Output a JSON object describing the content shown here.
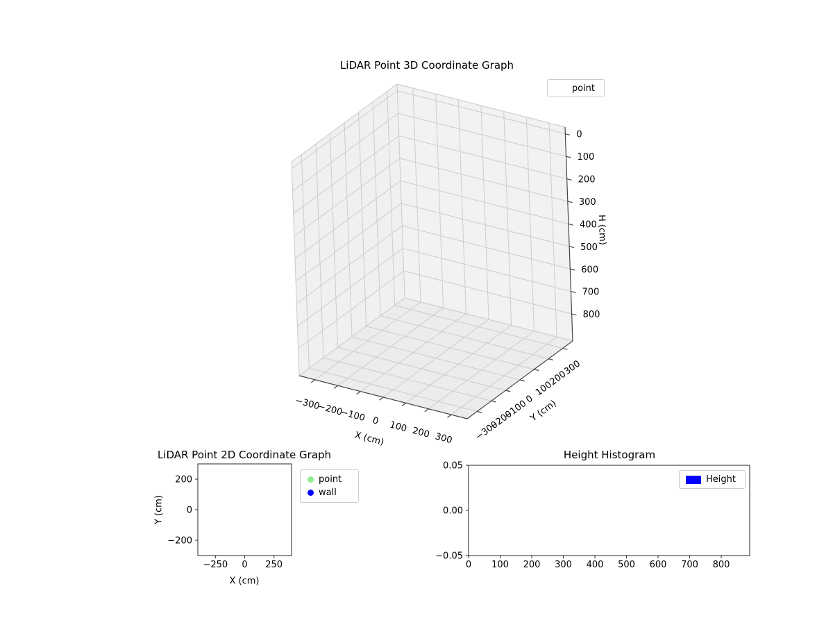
{
  "figure": {
    "background": "#ffffff"
  },
  "chart_data": [
    {
      "type": "scatter3d",
      "title": "LiDAR Point 3D Coordinate Graph",
      "xlabel": "X (cm)",
      "ylabel": "Y (cm)",
      "zlabel": "H (cm)",
      "xticks": [
        -300,
        -200,
        -100,
        0,
        100,
        200,
        300
      ],
      "yticks": [
        -300,
        -200,
        -100,
        0,
        100,
        200,
        300
      ],
      "zticks": [
        0,
        100,
        200,
        300,
        400,
        500,
        600,
        700,
        800
      ],
      "xlim": [
        -370,
        370
      ],
      "ylim": [
        -370,
        370
      ],
      "zlim": [
        -30,
        920
      ],
      "zaxis_inverted": true,
      "grid": true,
      "legend": [
        {
          "label": "point",
          "marker": "none"
        }
      ],
      "legend_position": "upper right",
      "series": [
        {
          "name": "point",
          "points": []
        }
      ]
    },
    {
      "type": "scatter",
      "title": "LiDAR Point 2D Coordinate Graph",
      "xlabel": "X (cm)",
      "ylabel": "Y (cm)",
      "xticks": [
        -250,
        0,
        250
      ],
      "yticks": [
        -200,
        0,
        200
      ],
      "xlim": [
        -400,
        400
      ],
      "ylim": [
        -300,
        300
      ],
      "grid": false,
      "legend": [
        {
          "label": "point",
          "color": "#90ee90"
        },
        {
          "label": "wall",
          "color": "#0000ff"
        }
      ],
      "legend_position": "outside upper right",
      "series": [
        {
          "name": "point",
          "color": "#90ee90",
          "points": []
        },
        {
          "name": "wall",
          "color": "#0000ff",
          "points": []
        }
      ]
    },
    {
      "type": "bar",
      "title": "Height Histogram",
      "xlabel": "",
      "ylabel": "",
      "xticks": [
        0,
        100,
        200,
        300,
        400,
        500,
        600,
        700,
        800
      ],
      "yticks": [
        -0.05,
        0,
        0.05
      ],
      "ytick_labels": [
        "-0.05",
        "0.00",
        "0.05"
      ],
      "xlim": [
        0,
        890
      ],
      "ylim": [
        -0.05,
        0.05
      ],
      "grid": false,
      "legend": [
        {
          "label": "Height",
          "color": "#0000ff"
        }
      ],
      "legend_position": "upper right",
      "values": []
    }
  ]
}
